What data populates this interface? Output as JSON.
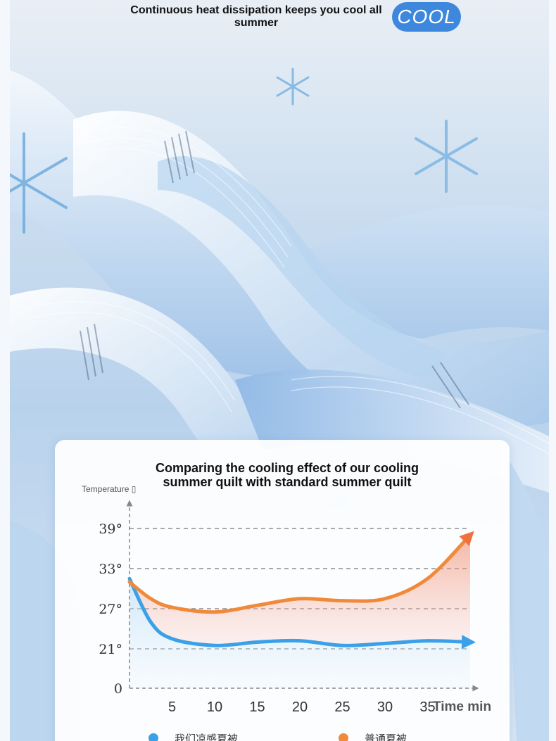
{
  "header": {
    "headline": "Continuous heat dissipation keeps you cool all summer",
    "badge": "COOL"
  },
  "chart_data": {
    "type": "line",
    "title": "Comparing the cooling effect of our cooling summer quilt with standard summer quilt",
    "ylabel": "Temperature ▯",
    "xlabel": "Time min",
    "x_ticks": [
      5,
      10,
      15,
      20,
      25,
      30,
      35
    ],
    "y_ticks": [
      "0",
      "21°",
      "27°",
      "33°",
      "39°"
    ],
    "y_tick_values": [
      0,
      21,
      27,
      33,
      39
    ],
    "xlim": [
      0,
      40
    ],
    "grid": "dashed horizontal at 21, 27, 33, 39",
    "series": [
      {
        "name": "我们凉感夏被",
        "color": "#3aa0e8",
        "x": [
          0,
          2.5,
          5,
          10,
          15,
          20,
          25,
          30,
          35,
          40
        ],
        "y": [
          31.5,
          25,
          22.5,
          21.5,
          22,
          22.2,
          21.5,
          21.8,
          22.2,
          22
        ]
      },
      {
        "name": "普通夏被",
        "color": "#f08a3a",
        "x": [
          0,
          2.5,
          5,
          10,
          15,
          20,
          25,
          30,
          35,
          40
        ],
        "y": [
          31,
          28.5,
          27.2,
          26.5,
          27.5,
          28.5,
          28.2,
          28.5,
          31.5,
          38
        ]
      }
    ],
    "legend": "bottom"
  }
}
